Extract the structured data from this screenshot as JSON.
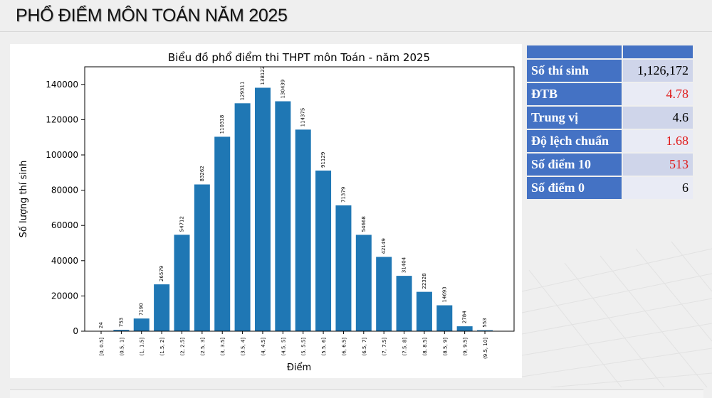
{
  "page": {
    "title": "PHỔ ĐIỂM MÔN TOÁN NĂM 2025"
  },
  "chart_data": {
    "type": "bar",
    "title": "Biểu đồ phổ điểm thi THPT môn Toán - năm 2025",
    "xlabel": "Điểm",
    "ylabel": "Số lượng thí sinh",
    "categories": [
      "[0, 0.5]",
      "(0.5, 1]",
      "(1, 1.5]",
      "(1.5, 2]",
      "(2, 2.5]",
      "(2.5, 3]",
      "(3, 3.5]",
      "(3.5, 4]",
      "(4, 4.5]",
      "(4.5, 5]",
      "(5, 5.5]",
      "(5.5, 6]",
      "(6, 6.5]",
      "(6.5, 7]",
      "(7, 7.5]",
      "(7.5, 8]",
      "(8, 8.5]",
      "(8.5, 9]",
      "(9, 9.5]",
      "(9.5, 10]"
    ],
    "values": [
      24,
      753,
      7190,
      26579,
      54712,
      83262,
      110318,
      129311,
      138122,
      130439,
      114375,
      91129,
      71379,
      54668,
      42149,
      31404,
      22328,
      14693,
      2784,
      553
    ],
    "ylim": [
      0,
      150000
    ],
    "yticks": [
      0,
      20000,
      40000,
      60000,
      80000,
      100000,
      120000,
      140000
    ],
    "bar_color": "#1f77b4",
    "grid": false
  },
  "stats": {
    "rows": [
      {
        "label": "Số thí sinh",
        "value": "1,126,172",
        "highlight": false
      },
      {
        "label": "ĐTB",
        "value": "4.78",
        "highlight": true
      },
      {
        "label": "Trung vị",
        "value": "4.6",
        "highlight": false
      },
      {
        "label": "Độ lệch chuẩn",
        "value": "1.68",
        "highlight": true
      },
      {
        "label": "Số điểm 10",
        "value": "513",
        "highlight": true
      },
      {
        "label": "Số điểm 0",
        "value": "6",
        "highlight": false
      }
    ],
    "header_color": "#4472c4",
    "highlight_color": "#e01b1b"
  }
}
